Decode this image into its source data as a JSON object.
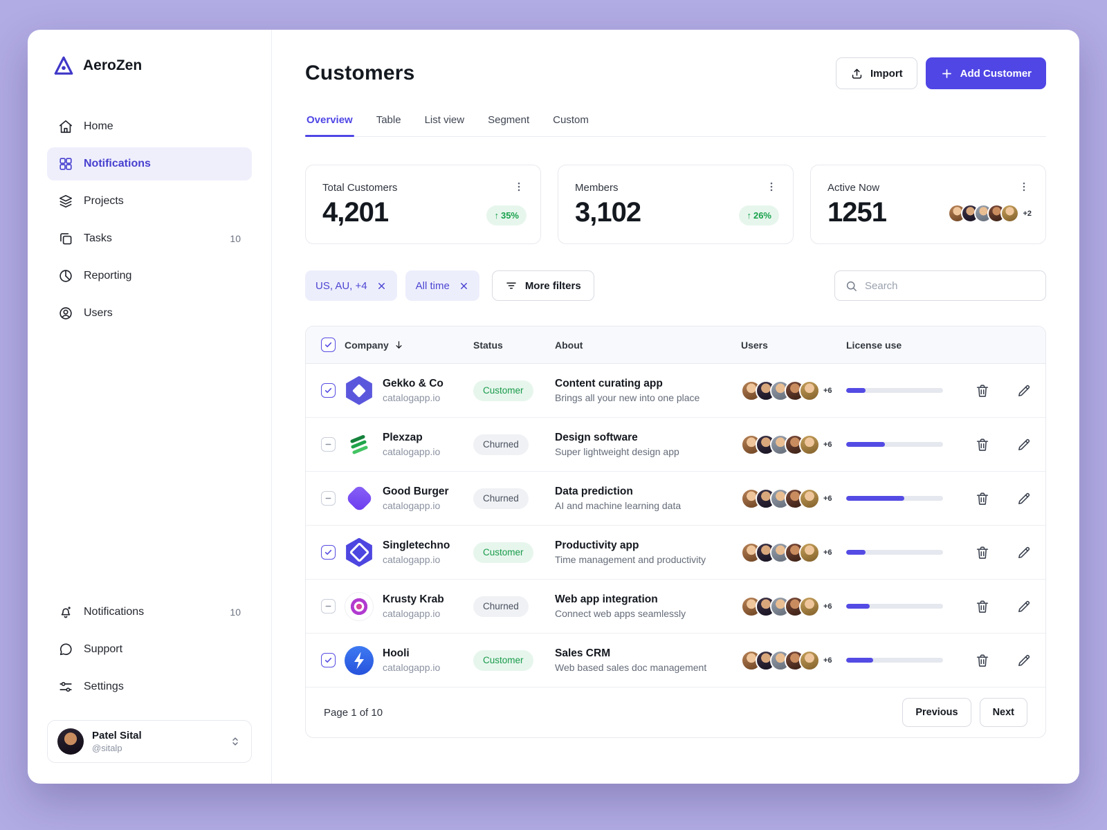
{
  "app": {
    "brand": "AeroZen"
  },
  "colors": {
    "accent": "#4F46E5",
    "positive": "#18A14B",
    "chip_bg": "#EDEEFC",
    "active_nav_bg": "#EFEFFC"
  },
  "sidebar": {
    "items": [
      {
        "label": "Home",
        "icon": "home-icon"
      },
      {
        "label": "Notifications",
        "icon": "dashboard-grid-icon",
        "active": true
      },
      {
        "label": "Projects",
        "icon": "layers-icon"
      },
      {
        "label": "Tasks",
        "icon": "tasks-icon",
        "badge": "10"
      },
      {
        "label": "Reporting",
        "icon": "pie-chart-icon"
      },
      {
        "label": "Users",
        "icon": "user-circle-icon"
      }
    ],
    "footer_items": [
      {
        "label": "Notifications",
        "icon": "bell-icon",
        "badge": "10"
      },
      {
        "label": "Support",
        "icon": "chat-bubble-icon"
      },
      {
        "label": "Settings",
        "icon": "sliders-icon"
      }
    ],
    "user": {
      "name": "Patel Sital",
      "handle": "@sitalp"
    }
  },
  "header": {
    "title": "Customers",
    "import_label": "Import",
    "add_customer_label": "Add Customer"
  },
  "tabs": [
    {
      "label": "Overview",
      "active": true
    },
    {
      "label": "Table"
    },
    {
      "label": "List view"
    },
    {
      "label": "Segment"
    },
    {
      "label": "Custom"
    }
  ],
  "stats": [
    {
      "label": "Total Customers",
      "value": "4,201",
      "change": "35%",
      "trend": "up"
    },
    {
      "label": "Members",
      "value": "3,102",
      "change": "26%",
      "trend": "up"
    },
    {
      "label": "Active Now",
      "value": "1251",
      "overflow": "+2"
    }
  ],
  "filters": {
    "chips": [
      {
        "label": "US, AU, +4"
      },
      {
        "label": "All time"
      }
    ],
    "more_filters_label": "More filters",
    "search_placeholder": "Search"
  },
  "table": {
    "columns": {
      "company": "Company",
      "status": "Status",
      "about": "About",
      "users": "Users",
      "license": "License use"
    },
    "rows": [
      {
        "company": "Gekko & Co",
        "domain": "catalogapp.io",
        "status": "Customer",
        "about_title": "Content curating app",
        "about_sub": "Brings all your new into one place",
        "users_overflow": "+6",
        "license_pct": 20,
        "checkbox": "checked",
        "logo": "gekko"
      },
      {
        "company": "Plexzap",
        "domain": "catalogapp.io",
        "status": "Churned",
        "about_title": "Design software",
        "about_sub": "Super lightweight design app",
        "users_overflow": "+6",
        "license_pct": 40,
        "checkbox": "mixed",
        "logo": "plexzap"
      },
      {
        "company": "Good Burger",
        "domain": "catalogapp.io",
        "status": "Churned",
        "about_title": "Data prediction",
        "about_sub": "AI and machine learning data",
        "users_overflow": "+6",
        "license_pct": 60,
        "checkbox": "mixed",
        "logo": "goodburger"
      },
      {
        "company": "Singletechno",
        "domain": "catalogapp.io",
        "status": "Customer",
        "about_title": "Productivity app",
        "about_sub": "Time management and productivity",
        "users_overflow": "+6",
        "license_pct": 20,
        "checkbox": "checked",
        "logo": "singletechno"
      },
      {
        "company": "Krusty Krab",
        "domain": "catalogapp.io",
        "status": "Churned",
        "about_title": "Web app integration",
        "about_sub": "Connect web apps seamlessly",
        "users_overflow": "+6",
        "license_pct": 24,
        "checkbox": "mixed",
        "logo": "krustykrab"
      },
      {
        "company": "Hooli",
        "domain": "catalogapp.io",
        "status": "Customer",
        "about_title": "Sales CRM",
        "about_sub": "Web based sales doc management",
        "users_overflow": "+6",
        "license_pct": 28,
        "checkbox": "checked",
        "logo": "hooli"
      }
    ],
    "pagination": {
      "label": "Page 1 of 10",
      "previous": "Previous",
      "next": "Next"
    }
  }
}
